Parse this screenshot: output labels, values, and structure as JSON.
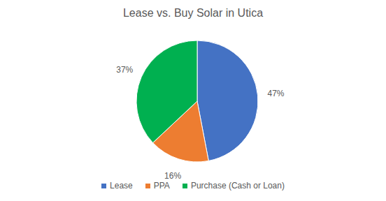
{
  "chart_data": {
    "type": "pie",
    "title": "Lease vs. Buy Solar in Utica",
    "categories": [
      "Lease",
      "PPA",
      "Purchase (Cash or Loan)"
    ],
    "values": [
      47,
      16,
      37
    ],
    "value_labels": [
      "47%",
      "16%",
      "37%"
    ],
    "colors": [
      "#4472c4",
      "#ed7d31",
      "#00b050"
    ],
    "data_labels": true,
    "legend": "bottom"
  }
}
